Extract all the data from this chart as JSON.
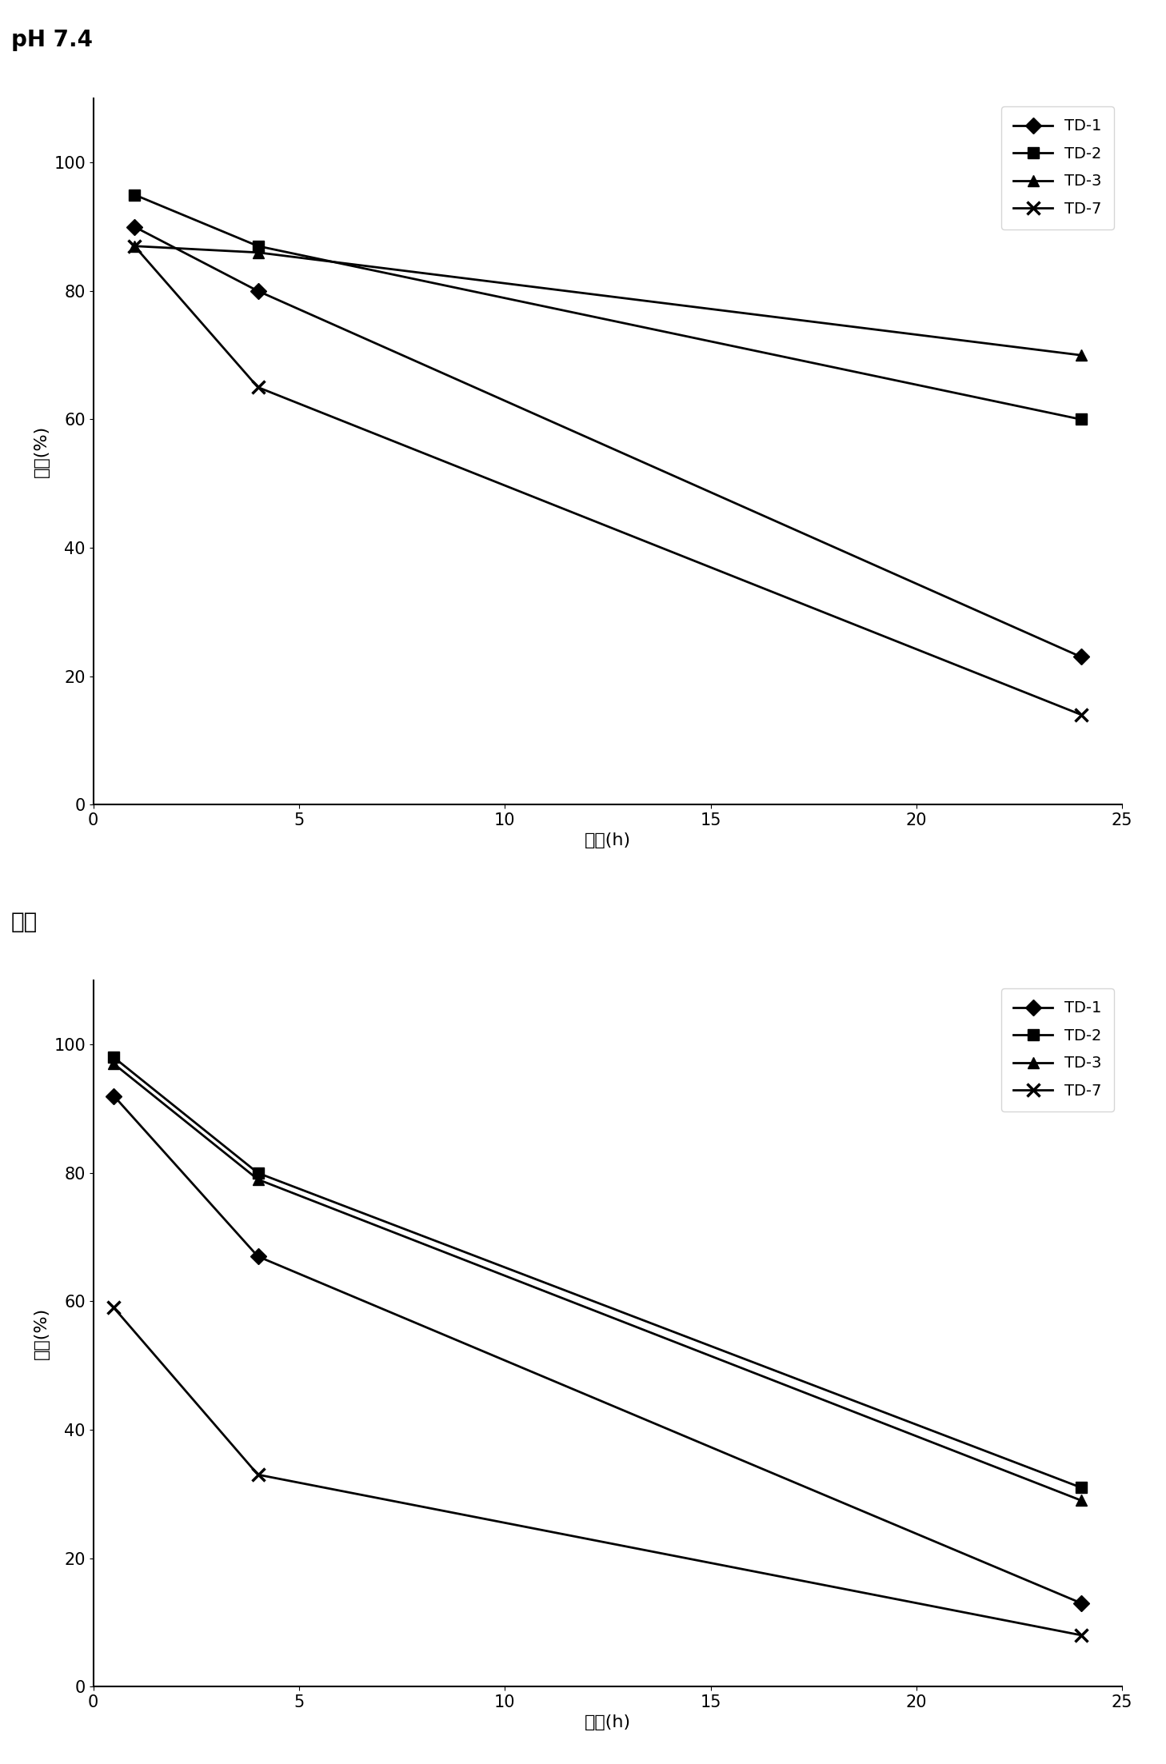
{
  "chart1": {
    "title": "pH 7.4",
    "xlabel": "时间(h)",
    "ylabel": "水解(%)",
    "series": {
      "TD-1": {
        "x": [
          1,
          4,
          24
        ],
        "y": [
          90,
          80,
          23
        ],
        "marker": "D"
      },
      "TD-2": {
        "x": [
          1,
          4,
          24
        ],
        "y": [
          95,
          87,
          60
        ],
        "marker": "s"
      },
      "TD-3": {
        "x": [
          1,
          4,
          24
        ],
        "y": [
          87,
          86,
          70
        ],
        "marker": "^"
      },
      "TD-7": {
        "x": [
          1,
          4,
          24
        ],
        "y": [
          87,
          65,
          14
        ],
        "marker": "x"
      }
    },
    "xlim": [
      0,
      25
    ],
    "ylim": [
      0,
      110
    ],
    "xticks": [
      0,
      5,
      10,
      15,
      20,
      25
    ],
    "yticks": [
      0,
      20,
      40,
      60,
      80,
      100
    ]
  },
  "chart2": {
    "title": "血浆",
    "xlabel": "时间(h)",
    "ylabel": "水解(%)",
    "series": {
      "TD-1": {
        "x": [
          0.5,
          4,
          24
        ],
        "y": [
          92,
          67,
          13
        ],
        "marker": "D"
      },
      "TD-2": {
        "x": [
          0.5,
          4,
          24
        ],
        "y": [
          98,
          80,
          31
        ],
        "marker": "s"
      },
      "TD-3": {
        "x": [
          0.5,
          4,
          24
        ],
        "y": [
          97,
          79,
          29
        ],
        "marker": "^"
      },
      "TD-7": {
        "x": [
          0.5,
          4,
          24
        ],
        "y": [
          59,
          33,
          8
        ],
        "marker": "x"
      }
    },
    "xlim": [
      0,
      25
    ],
    "ylim": [
      0,
      110
    ],
    "xticks": [
      0,
      5,
      10,
      15,
      20,
      25
    ],
    "yticks": [
      0,
      20,
      40,
      60,
      80,
      100
    ]
  },
  "line_color": "#000000",
  "marker_size": 10,
  "linewidth": 2.0,
  "font_size_title": 20,
  "font_size_axis": 16,
  "font_size_tick": 15,
  "font_size_legend": 14
}
